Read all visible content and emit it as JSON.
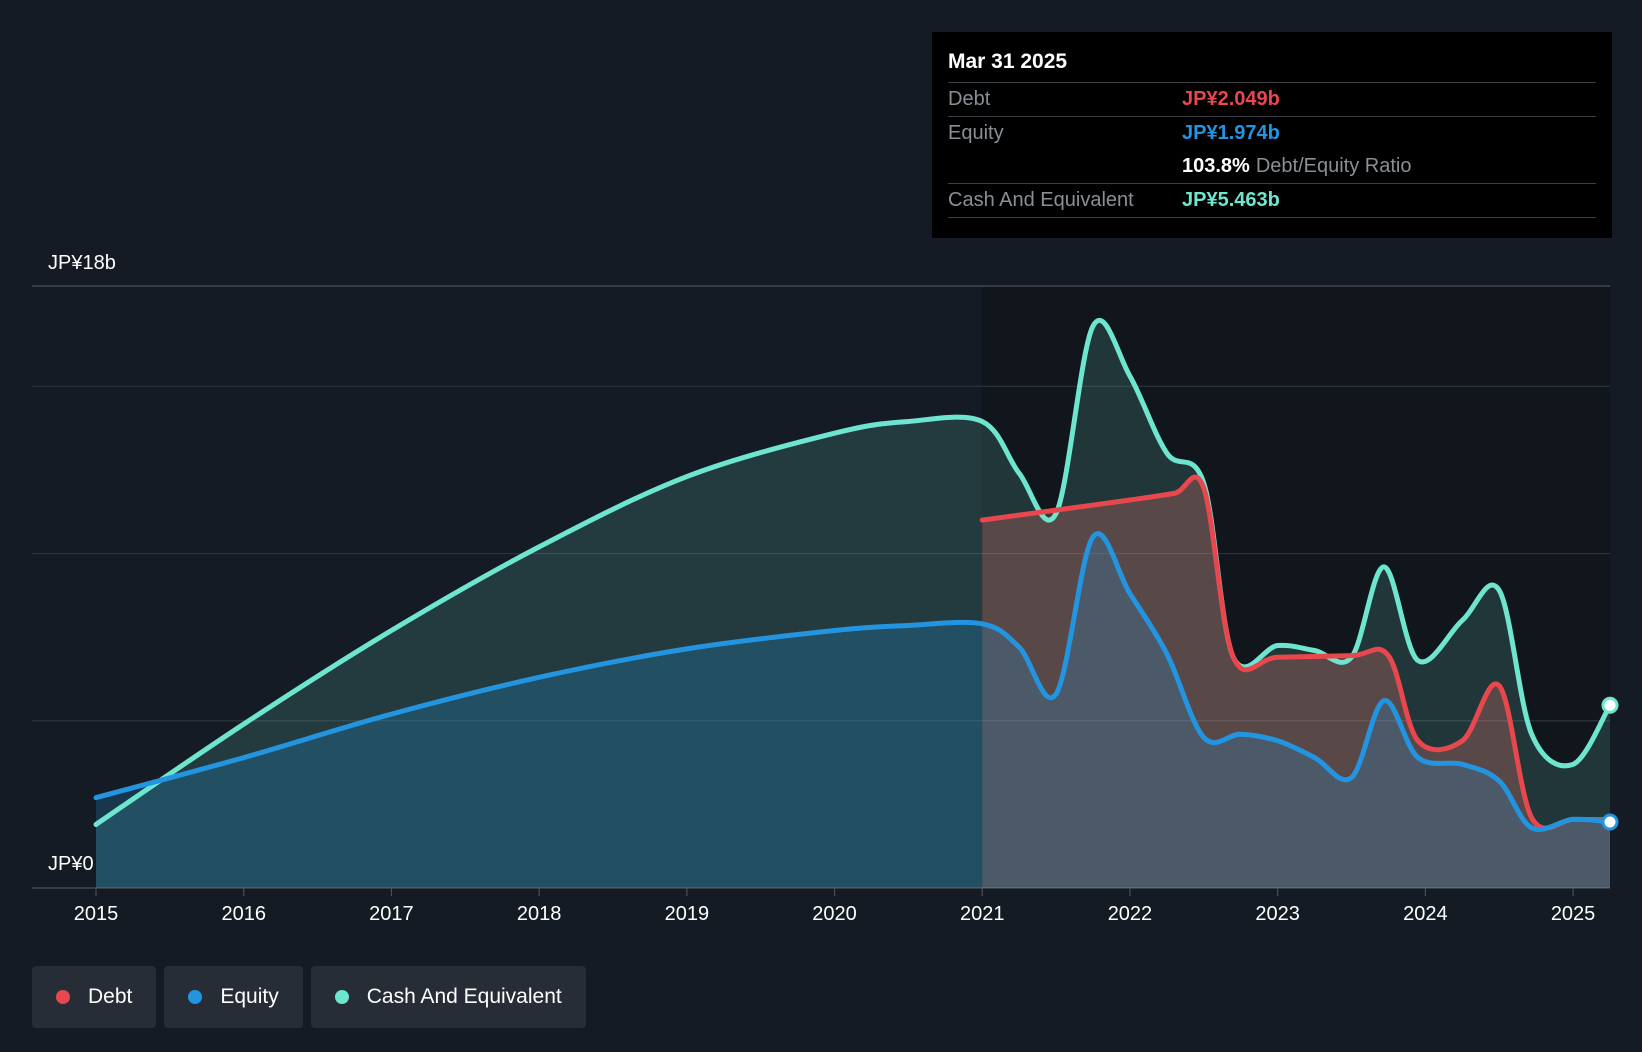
{
  "colors": {
    "debt": "#e8474d",
    "equity": "#2394e0",
    "cash": "#6ee6cf",
    "background": "#151b24"
  },
  "tooltip": {
    "date": "Mar 31 2025",
    "debt_label": "Debt",
    "debt_value": "JP¥2.049b",
    "equity_label": "Equity",
    "equity_value": "JP¥1.974b",
    "ratio_value": "103.8%",
    "ratio_label": "Debt/Equity Ratio",
    "cash_label": "Cash And Equivalent",
    "cash_value": "JP¥5.463b"
  },
  "legend": [
    {
      "label": "Debt",
      "color": "#e8474d"
    },
    {
      "label": "Equity",
      "color": "#2394e0"
    },
    {
      "label": "Cash And Equivalent",
      "color": "#6ee6cf"
    }
  ],
  "chart_data": {
    "type": "area",
    "y_top_label": "JP¥18b",
    "y_bottom_label": "JP¥0",
    "ylim": [
      0,
      18
    ],
    "xlim": [
      2015,
      2025.25
    ],
    "x_ticks": [
      "2015",
      "2016",
      "2017",
      "2018",
      "2019",
      "2020",
      "2021",
      "2022",
      "2023",
      "2024",
      "2025"
    ],
    "grid": true,
    "legend_position": "bottom-left",
    "series": [
      {
        "name": "Debt",
        "points": [
          [
            2021.0,
            11.0
          ],
          [
            2021.5,
            11.3
          ],
          [
            2022.0,
            11.6
          ],
          [
            2022.3,
            11.8
          ],
          [
            2022.5,
            11.95
          ],
          [
            2022.7,
            6.9
          ],
          [
            2023.0,
            6.9
          ],
          [
            2023.5,
            6.95
          ],
          [
            2023.75,
            6.95
          ],
          [
            2023.95,
            4.4
          ],
          [
            2024.25,
            4.4
          ],
          [
            2024.5,
            6.05
          ],
          [
            2024.72,
            2.1
          ],
          [
            2025.0,
            2.05
          ],
          [
            2025.25,
            2.049
          ]
        ]
      },
      {
        "name": "Equity",
        "points": [
          [
            2015.0,
            2.7
          ],
          [
            2016.0,
            3.9
          ],
          [
            2017.0,
            5.2
          ],
          [
            2018.0,
            6.3
          ],
          [
            2019.0,
            7.15
          ],
          [
            2020.0,
            7.7
          ],
          [
            2020.5,
            7.85
          ],
          [
            2021.0,
            7.9
          ],
          [
            2021.25,
            7.2
          ],
          [
            2021.5,
            5.8
          ],
          [
            2021.75,
            10.5
          ],
          [
            2022.0,
            8.8
          ],
          [
            2022.25,
            7.0
          ],
          [
            2022.5,
            4.5
          ],
          [
            2022.75,
            4.6
          ],
          [
            2023.0,
            4.4
          ],
          [
            2023.25,
            3.9
          ],
          [
            2023.5,
            3.3
          ],
          [
            2023.72,
            5.6
          ],
          [
            2023.95,
            3.9
          ],
          [
            2024.25,
            3.7
          ],
          [
            2024.5,
            3.2
          ],
          [
            2024.72,
            1.8
          ],
          [
            2025.0,
            2.05
          ],
          [
            2025.25,
            1.974
          ]
        ]
      },
      {
        "name": "Cash And Equivalent",
        "points": [
          [
            2015.0,
            1.9
          ],
          [
            2016.0,
            4.9
          ],
          [
            2017.0,
            7.7
          ],
          [
            2018.0,
            10.2
          ],
          [
            2019.0,
            12.3
          ],
          [
            2020.0,
            13.6
          ],
          [
            2020.5,
            13.95
          ],
          [
            2021.0,
            13.95
          ],
          [
            2021.25,
            12.4
          ],
          [
            2021.5,
            11.2
          ],
          [
            2021.75,
            16.8
          ],
          [
            2022.0,
            15.3
          ],
          [
            2022.25,
            13.0
          ],
          [
            2022.5,
            12.1
          ],
          [
            2022.7,
            6.9
          ],
          [
            2023.0,
            7.25
          ],
          [
            2023.25,
            7.1
          ],
          [
            2023.5,
            6.9
          ],
          [
            2023.72,
            9.6
          ],
          [
            2023.95,
            6.8
          ],
          [
            2024.25,
            8.0
          ],
          [
            2024.5,
            8.9
          ],
          [
            2024.72,
            4.6
          ],
          [
            2025.0,
            3.7
          ],
          [
            2025.25,
            5.463
          ]
        ]
      }
    ]
  }
}
